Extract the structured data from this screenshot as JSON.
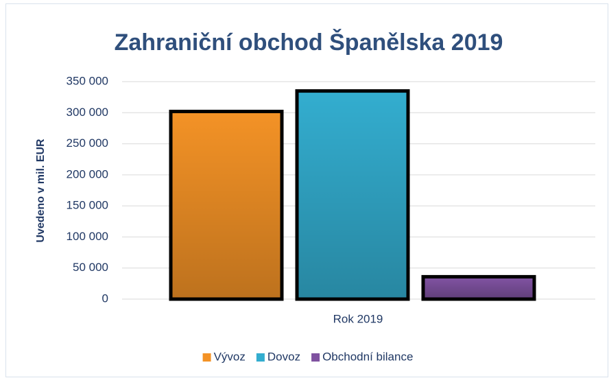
{
  "chart_data": {
    "type": "bar",
    "title": "Zahraniční obchod Španělska 2019",
    "y_label": "Uvedeno v mil. EUR",
    "categories": [
      "Rok 2019"
    ],
    "series": [
      {
        "name": "Vývoz",
        "color": "#f39226",
        "values": [
          302000
        ]
      },
      {
        "name": "Dovoz",
        "color": "#33adcf",
        "values": [
          335000
        ]
      },
      {
        "name": "Obchodní bilance",
        "color": "#7f52a0",
        "values": [
          36000
        ]
      }
    ],
    "ylim": [
      0,
      350000
    ],
    "yticks": [
      {
        "value": 0,
        "label": "0"
      },
      {
        "value": 50000,
        "label": "50 000"
      },
      {
        "value": 100000,
        "label": "100 000"
      },
      {
        "value": 150000,
        "label": "150 000"
      },
      {
        "value": 200000,
        "label": "200 000"
      },
      {
        "value": 250000,
        "label": "250 000"
      },
      {
        "value": 300000,
        "label": "300 000"
      },
      {
        "value": 350000,
        "label": "350 000"
      }
    ],
    "grid": true,
    "legend": "bottom"
  }
}
